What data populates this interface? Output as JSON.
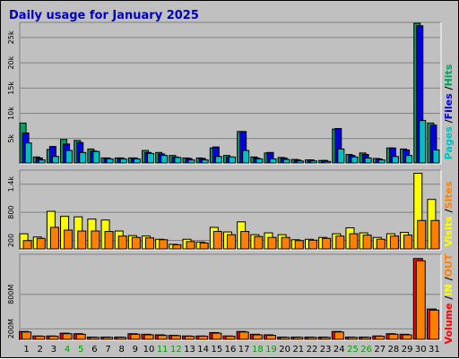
{
  "title": "Daily usage for January 2025",
  "colors": {
    "title": "#0000c0",
    "pages": "#00c0c0",
    "files": "#0000e0",
    "hits": "#00a060",
    "visits": "#ffff00",
    "sites": "#ff8000",
    "in": "#ffff00",
    "out": "#ff8000",
    "volume": "#ff0000",
    "separator": "#000000",
    "day_label": "#000000",
    "weekend_label": "#00a000",
    "plot_bg": "#c0c0c0",
    "grid": "#808080"
  },
  "legend": {
    "top": [
      {
        "text": "Pages",
        "color_key": "pages"
      },
      {
        "text": " /",
        "color_key": "separator"
      },
      {
        "text": "Files",
        "color_key": "files"
      },
      {
        "text": " /",
        "color_key": "separator"
      },
      {
        "text": "Hits",
        "color_key": "hits"
      }
    ],
    "middle": [
      {
        "text": "Visits",
        "color_key": "visits"
      },
      {
        "text": " /",
        "color_key": "separator"
      },
      {
        "text": "Sites",
        "color_key": "sites"
      }
    ],
    "bottom": [
      {
        "text": "Volume",
        "color_key": "volume"
      },
      {
        "text": "  /",
        "color_key": "separator"
      },
      {
        "text": "IN",
        "color_key": "in"
      },
      {
        "text": "  /",
        "color_key": "separator"
      },
      {
        "text": "OUT",
        "color_key": "out"
      }
    ]
  },
  "chart_data": [
    {
      "type": "bar",
      "panel": "hits",
      "ylim": [
        0,
        28000
      ],
      "yticks": [
        5000,
        10000,
        15000,
        20000,
        25000
      ],
      "yticklabels": [
        "5k",
        "10k",
        "15k",
        "20k",
        "25k"
      ],
      "categories": [
        "1",
        "2",
        "3",
        "4",
        "5",
        "6",
        "7",
        "8",
        "9",
        "10",
        "11",
        "12",
        "13",
        "14",
        "15",
        "16",
        "17",
        "18",
        "19",
        "20",
        "21",
        "22",
        "23",
        "24",
        "25",
        "26",
        "27",
        "28",
        "29",
        "30",
        "31"
      ],
      "weekend_days": [
        4,
        5,
        11,
        12,
        18,
        19,
        25,
        26
      ],
      "series": [
        {
          "name": "Hits",
          "color_key": "hits",
          "values": [
            8000,
            1200,
            2700,
            4700,
            4500,
            2800,
            1000,
            1000,
            1000,
            2500,
            2100,
            1500,
            1000,
            1000,
            3000,
            1500,
            6300,
            1200,
            2000,
            1100,
            700,
            600,
            500,
            6800,
            1700,
            2000,
            900,
            3000,
            2800,
            28000,
            8000
          ]
        },
        {
          "name": "Files",
          "color_key": "files",
          "values": [
            6000,
            1000,
            3300,
            3800,
            4100,
            2400,
            1000,
            1000,
            1000,
            2100,
            1800,
            1200,
            900,
            900,
            3200,
            1200,
            6300,
            1000,
            2100,
            1000,
            600,
            600,
            500,
            6900,
            1500,
            1700,
            800,
            3000,
            2600,
            27500,
            7600
          ]
        },
        {
          "name": "Pages",
          "color_key": "pages",
          "values": [
            4000,
            600,
            1300,
            2500,
            2100,
            2300,
            800,
            800,
            800,
            1900,
            1500,
            1100,
            600,
            600,
            1300,
            1200,
            2500,
            800,
            800,
            700,
            400,
            400,
            300,
            2800,
            1200,
            1000,
            600,
            1300,
            1500,
            8500,
            2600
          ]
        }
      ]
    },
    {
      "type": "bar",
      "panel": "visits",
      "ylim": [
        0,
        1700
      ],
      "yticks": [
        200,
        800,
        1400
      ],
      "yticklabels": [
        "200",
        "800",
        "1.4k"
      ],
      "categories": [
        "1",
        "2",
        "3",
        "4",
        "5",
        "6",
        "7",
        "8",
        "9",
        "10",
        "11",
        "12",
        "13",
        "14",
        "15",
        "16",
        "17",
        "18",
        "19",
        "20",
        "21",
        "22",
        "23",
        "24",
        "25",
        "26",
        "27",
        "28",
        "29",
        "30",
        "31"
      ],
      "series": [
        {
          "name": "Visits",
          "color_key": "visits",
          "values": [
            330,
            260,
            820,
            710,
            700,
            650,
            630,
            390,
            290,
            280,
            210,
            100,
            210,
            150,
            470,
            370,
            590,
            310,
            350,
            310,
            200,
            210,
            250,
            330,
            460,
            350,
            250,
            330,
            360,
            1650,
            1080
          ]
        },
        {
          "name": "Sites",
          "color_key": "sites",
          "values": [
            180,
            230,
            470,
            410,
            390,
            390,
            380,
            280,
            250,
            240,
            200,
            90,
            160,
            130,
            380,
            310,
            380,
            270,
            250,
            250,
            180,
            190,
            230,
            280,
            330,
            300,
            210,
            280,
            300,
            620,
            620
          ]
        }
      ]
    },
    {
      "type": "bar",
      "panel": "volume",
      "ylim": [
        0,
        1500
      ],
      "yticks": [
        200,
        800
      ],
      "yticklabels": [
        "200M",
        "800M"
      ],
      "categories": [
        "1",
        "2",
        "3",
        "4",
        "5",
        "6",
        "7",
        "8",
        "9",
        "10",
        "11",
        "12",
        "13",
        "14",
        "15",
        "16",
        "17",
        "18",
        "19",
        "20",
        "21",
        "22",
        "23",
        "24",
        "25",
        "26",
        "27",
        "28",
        "29",
        "30",
        "31"
      ],
      "series": [
        {
          "name": "Volume",
          "color_key": "volume",
          "values": [
            140,
            60,
            60,
            110,
            100,
            40,
            40,
            40,
            100,
            90,
            80,
            70,
            60,
            60,
            120,
            60,
            140,
            90,
            80,
            40,
            40,
            40,
            40,
            140,
            40,
            40,
            60,
            100,
            90,
            1440,
            540
          ]
        },
        {
          "name": "OUT",
          "color_key": "out",
          "values": [
            130,
            55,
            55,
            100,
            90,
            35,
            35,
            35,
            90,
            80,
            70,
            65,
            55,
            55,
            110,
            55,
            130,
            80,
            70,
            35,
            35,
            35,
            35,
            130,
            35,
            35,
            55,
            90,
            80,
            1400,
            520
          ]
        }
      ]
    }
  ]
}
